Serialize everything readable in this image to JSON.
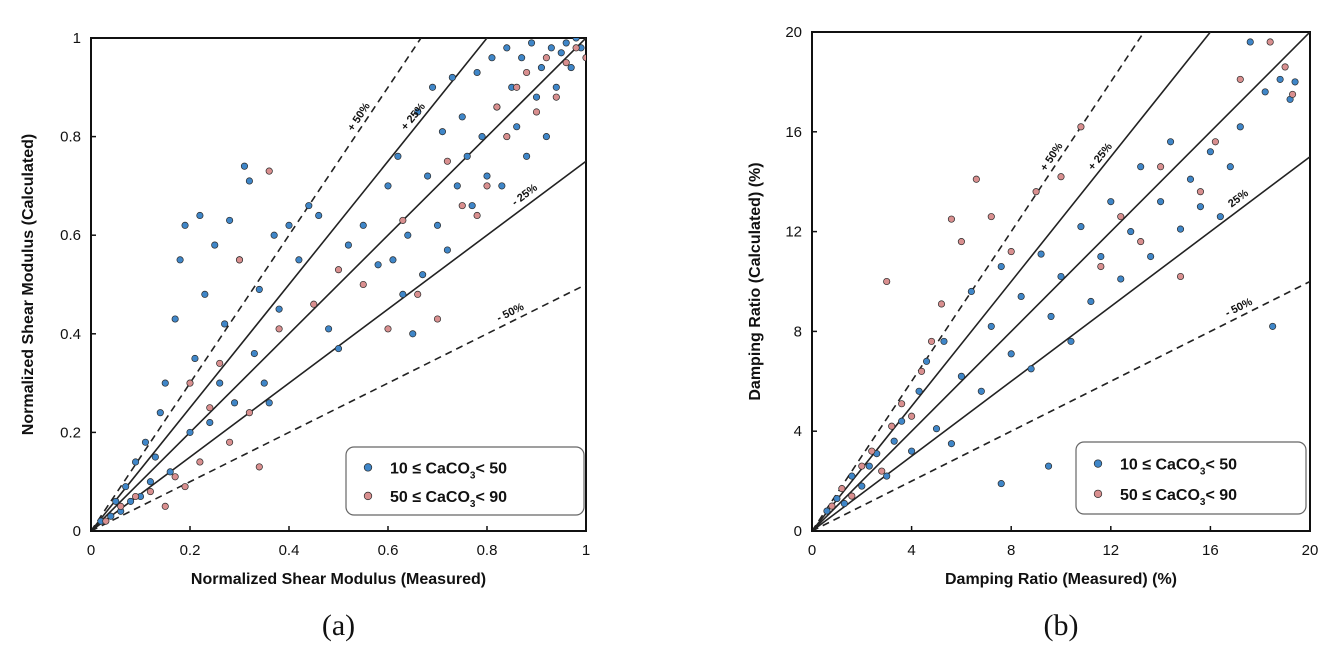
{
  "chart_data": [
    {
      "type": "scatter",
      "panel_label": "(a)",
      "xlabel": "Normalized Shear Modulus (Measured)",
      "ylabel": "Normalized Shear Modulus (Calculated)",
      "xlim": [
        0,
        1
      ],
      "ylim": [
        0,
        1
      ],
      "xticks": [
        "0",
        "0.2",
        "0.4",
        "0.6",
        "0.8",
        "1"
      ],
      "yticks": [
        "0",
        "0.2",
        "0.4",
        "0.6",
        "0.8",
        "1"
      ],
      "reference_lines": [
        {
          "label": "+ 50%",
          "slope": 1.5,
          "style": "dashed"
        },
        {
          "label": "+ 25%",
          "slope": 1.25,
          "style": "solid"
        },
        {
          "label": "",
          "slope": 1.0,
          "style": "solid"
        },
        {
          "label": "- 25%",
          "slope": 0.75,
          "style": "solid"
        },
        {
          "label": "- 50%",
          "slope": 0.5,
          "style": "dashed"
        }
      ],
      "legend_position": "bottom-right",
      "series": [
        {
          "name": "10 ≤ CaCO3 < 50",
          "legend_main": "10 ≤ CaCO",
          "legend_sub": "3",
          "legend_tail": "< 50",
          "color": "#3f86c8",
          "points": [
            [
              0.02,
              0.02
            ],
            [
              0.04,
              0.03
            ],
            [
              0.05,
              0.06
            ],
            [
              0.06,
              0.04
            ],
            [
              0.07,
              0.09
            ],
            [
              0.08,
              0.06
            ],
            [
              0.09,
              0.14
            ],
            [
              0.1,
              0.07
            ],
            [
              0.11,
              0.18
            ],
            [
              0.12,
              0.1
            ],
            [
              0.13,
              0.15
            ],
            [
              0.14,
              0.24
            ],
            [
              0.15,
              0.3
            ],
            [
              0.16,
              0.12
            ],
            [
              0.17,
              0.43
            ],
            [
              0.18,
              0.55
            ],
            [
              0.19,
              0.62
            ],
            [
              0.2,
              0.2
            ],
            [
              0.21,
              0.35
            ],
            [
              0.22,
              0.64
            ],
            [
              0.23,
              0.48
            ],
            [
              0.24,
              0.22
            ],
            [
              0.25,
              0.58
            ],
            [
              0.26,
              0.3
            ],
            [
              0.27,
              0.42
            ],
            [
              0.28,
              0.63
            ],
            [
              0.29,
              0.26
            ],
            [
              0.3,
              0.55
            ],
            [
              0.31,
              0.74
            ],
            [
              0.32,
              0.71
            ],
            [
              0.33,
              0.36
            ],
            [
              0.34,
              0.49
            ],
            [
              0.35,
              0.3
            ],
            [
              0.36,
              0.26
            ],
            [
              0.37,
              0.6
            ],
            [
              0.38,
              0.45
            ],
            [
              0.4,
              0.62
            ],
            [
              0.42,
              0.55
            ],
            [
              0.44,
              0.66
            ],
            [
              0.46,
              0.64
            ],
            [
              0.48,
              0.41
            ],
            [
              0.5,
              0.37
            ],
            [
              0.52,
              0.58
            ],
            [
              0.55,
              0.62
            ],
            [
              0.58,
              0.54
            ],
            [
              0.6,
              0.7
            ],
            [
              0.61,
              0.55
            ],
            [
              0.62,
              0.76
            ],
            [
              0.63,
              0.48
            ],
            [
              0.64,
              0.6
            ],
            [
              0.65,
              0.4
            ],
            [
              0.66,
              0.85
            ],
            [
              0.67,
              0.52
            ],
            [
              0.68,
              0.72
            ],
            [
              0.69,
              0.9
            ],
            [
              0.7,
              0.62
            ],
            [
              0.71,
              0.81
            ],
            [
              0.72,
              0.57
            ],
            [
              0.73,
              0.92
            ],
            [
              0.74,
              0.7
            ],
            [
              0.75,
              0.84
            ],
            [
              0.76,
              0.76
            ],
            [
              0.77,
              0.66
            ],
            [
              0.78,
              0.93
            ],
            [
              0.79,
              0.8
            ],
            [
              0.8,
              0.72
            ],
            [
              0.81,
              0.96
            ],
            [
              0.82,
              0.86
            ],
            [
              0.83,
              0.7
            ],
            [
              0.84,
              0.98
            ],
            [
              0.85,
              0.9
            ],
            [
              0.86,
              0.82
            ],
            [
              0.87,
              0.96
            ],
            [
              0.88,
              0.76
            ],
            [
              0.89,
              0.99
            ],
            [
              0.9,
              0.88
            ],
            [
              0.91,
              0.94
            ],
            [
              0.92,
              0.8
            ],
            [
              0.93,
              0.98
            ],
            [
              0.94,
              0.9
            ],
            [
              0.95,
              0.97
            ],
            [
              0.96,
              0.99
            ],
            [
              0.97,
              0.94
            ],
            [
              0.98,
              1.0
            ],
            [
              0.99,
              0.98
            ]
          ]
        },
        {
          "name": "50 ≤ CaCO3 < 90",
          "legend_main": "50 ≤ CaCO",
          "legend_sub": "3",
          "legend_tail": "< 90",
          "color": "#d98f8f",
          "points": [
            [
              0.03,
              0.02
            ],
            [
              0.06,
              0.05
            ],
            [
              0.09,
              0.07
            ],
            [
              0.12,
              0.08
            ],
            [
              0.15,
              0.05
            ],
            [
              0.17,
              0.11
            ],
            [
              0.19,
              0.09
            ],
            [
              0.2,
              0.3
            ],
            [
              0.22,
              0.14
            ],
            [
              0.24,
              0.25
            ],
            [
              0.26,
              0.34
            ],
            [
              0.28,
              0.18
            ],
            [
              0.3,
              0.55
            ],
            [
              0.32,
              0.24
            ],
            [
              0.34,
              0.13
            ],
            [
              0.36,
              0.73
            ],
            [
              0.38,
              0.41
            ],
            [
              0.45,
              0.46
            ],
            [
              0.5,
              0.53
            ],
            [
              0.55,
              0.5
            ],
            [
              0.6,
              0.41
            ],
            [
              0.63,
              0.63
            ],
            [
              0.66,
              0.48
            ],
            [
              0.7,
              0.43
            ],
            [
              0.72,
              0.75
            ],
            [
              0.75,
              0.66
            ],
            [
              0.78,
              0.64
            ],
            [
              0.8,
              0.7
            ],
            [
              0.82,
              0.86
            ],
            [
              0.84,
              0.8
            ],
            [
              0.86,
              0.9
            ],
            [
              0.88,
              0.93
            ],
            [
              0.9,
              0.85
            ],
            [
              0.92,
              0.96
            ],
            [
              0.94,
              0.88
            ],
            [
              0.96,
              0.95
            ],
            [
              0.98,
              0.98
            ],
            [
              1.0,
              0.96
            ]
          ]
        }
      ]
    },
    {
      "type": "scatter",
      "panel_label": "(b)",
      "xlabel": "Damping Ratio (Measured) (%)",
      "ylabel": "Damping Ratio (Calculated) (%)",
      "xlim": [
        0,
        20
      ],
      "ylim": [
        0,
        20
      ],
      "xticks": [
        "0",
        "4",
        "8",
        "12",
        "16",
        "20"
      ],
      "yticks": [
        "0",
        "4",
        "8",
        "12",
        "16",
        "20"
      ],
      "reference_lines": [
        {
          "label": "+ 50%",
          "slope": 1.5,
          "style": "dashed"
        },
        {
          "label": "+ 25%",
          "slope": 1.25,
          "style": "solid"
        },
        {
          "label": "",
          "slope": 1.0,
          "style": "solid"
        },
        {
          "label": "25%",
          "slope": 0.75,
          "style": "solid"
        },
        {
          "label": "- 50%",
          "slope": 0.5,
          "style": "dashed"
        }
      ],
      "legend_position": "bottom-right",
      "series": [
        {
          "name": "10 ≤ CaCO3 < 50",
          "legend_main": "10 ≤ CaCO",
          "legend_sub": "3",
          "legend_tail": "< 50",
          "color": "#3f86c8",
          "points": [
            [
              0.6,
              0.8
            ],
            [
              1,
              1.3
            ],
            [
              1.3,
              1.1
            ],
            [
              1.6,
              2.2
            ],
            [
              2,
              1.8
            ],
            [
              2.3,
              2.6
            ],
            [
              2.6,
              3.1
            ],
            [
              3,
              2.2
            ],
            [
              3.3,
              3.6
            ],
            [
              3.6,
              4.4
            ],
            [
              4,
              3.2
            ],
            [
              4.3,
              5.6
            ],
            [
              4.6,
              6.8
            ],
            [
              5,
              4.1
            ],
            [
              5.3,
              7.6
            ],
            [
              5.6,
              3.5
            ],
            [
              6,
              6.2
            ],
            [
              6.4,
              9.6
            ],
            [
              6.8,
              5.6
            ],
            [
              7.2,
              8.2
            ],
            [
              7.6,
              10.6
            ],
            [
              8,
              7.1
            ],
            [
              8.4,
              9.4
            ],
            [
              8.8,
              6.5
            ],
            [
              9.2,
              11.1
            ],
            [
              9.6,
              8.6
            ],
            [
              10,
              10.2
            ],
            [
              10.4,
              7.6
            ],
            [
              10.8,
              12.2
            ],
            [
              11.2,
              9.2
            ],
            [
              11.6,
              11.0
            ],
            [
              12,
              13.2
            ],
            [
              12.4,
              10.1
            ],
            [
              12.8,
              12.0
            ],
            [
              13.2,
              14.6
            ],
            [
              13.6,
              11.0
            ],
            [
              14,
              13.2
            ],
            [
              14.4,
              15.6
            ],
            [
              14.8,
              12.1
            ],
            [
              15.2,
              14.1
            ],
            [
              15.6,
              13.0
            ],
            [
              16,
              15.2
            ],
            [
              16.4,
              12.6
            ],
            [
              16.8,
              14.6
            ],
            [
              17.2,
              16.2
            ],
            [
              17.6,
              19.6
            ],
            [
              18.2,
              17.6
            ],
            [
              18.8,
              18.1
            ],
            [
              19.2,
              17.3
            ],
            [
              19.4,
              18.0
            ],
            [
              18.5,
              8.2
            ],
            [
              9.5,
              2.6
            ],
            [
              7.6,
              1.9
            ]
          ]
        },
        {
          "name": "50 ≤ CaCO3 < 90",
          "legend_main": "50 ≤ CaCO",
          "legend_sub": "3",
          "legend_tail": "< 90",
          "color": "#d98f8f",
          "points": [
            [
              0.8,
              1.0
            ],
            [
              1.2,
              1.7
            ],
            [
              1.6,
              1.4
            ],
            [
              2,
              2.6
            ],
            [
              2.4,
              3.2
            ],
            [
              2.8,
              2.4
            ],
            [
              3.2,
              4.2
            ],
            [
              3.6,
              5.1
            ],
            [
              4,
              4.6
            ],
            [
              4.4,
              6.4
            ],
            [
              4.8,
              7.6
            ],
            [
              5.2,
              9.1
            ],
            [
              5.6,
              12.5
            ],
            [
              6,
              11.6
            ],
            [
              6.6,
              14.1
            ],
            [
              7.2,
              12.6
            ],
            [
              8,
              11.2
            ],
            [
              9,
              13.6
            ],
            [
              10,
              14.2
            ],
            [
              10.8,
              16.2
            ],
            [
              11.6,
              10.6
            ],
            [
              12.4,
              12.6
            ],
            [
              13.2,
              11.6
            ],
            [
              14,
              14.6
            ],
            [
              14.8,
              10.2
            ],
            [
              15.6,
              13.6
            ],
            [
              16.2,
              15.6
            ],
            [
              17.2,
              18.1
            ],
            [
              18.4,
              19.6
            ],
            [
              19,
              18.6
            ],
            [
              19.3,
              17.5
            ],
            [
              3.0,
              10.0
            ]
          ]
        }
      ]
    }
  ]
}
